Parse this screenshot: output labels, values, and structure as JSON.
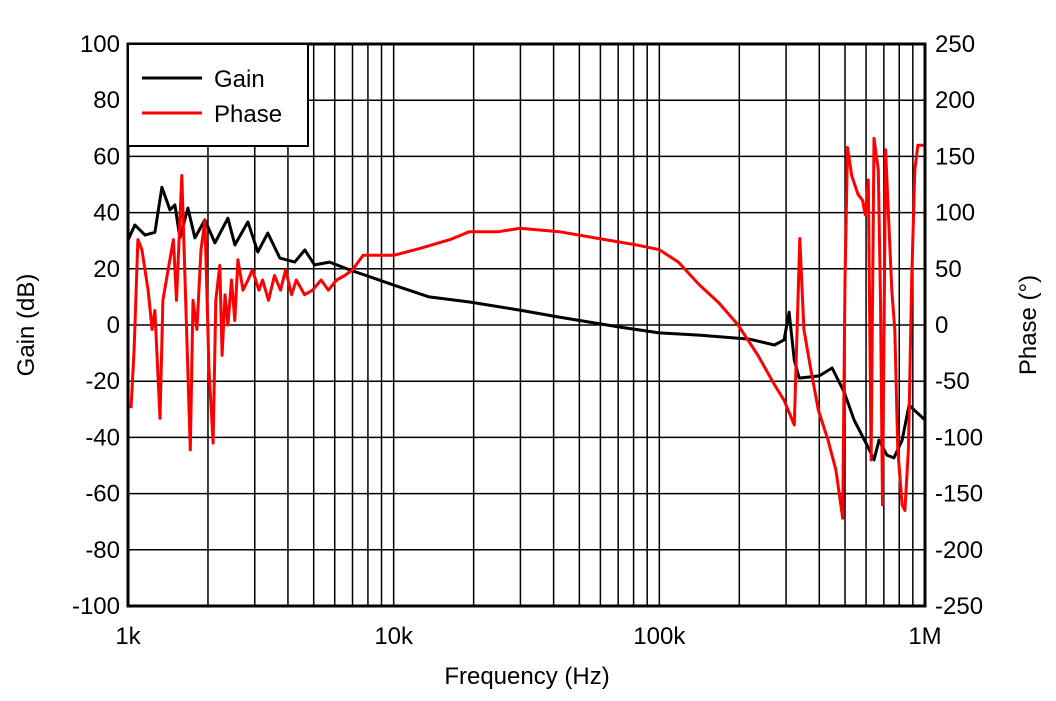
{
  "chart_data": {
    "type": "line",
    "xlabel": "Frequency (Hz)",
    "ylabel": "Gain  (dB)",
    "y2label": "Phase (°)",
    "xscale": "log",
    "xlim": [
      1000,
      1000000
    ],
    "ylim": [
      -100,
      100
    ],
    "y2lim": [
      -250,
      250
    ],
    "grid": true,
    "legend": "top-left",
    "xticks": [
      {
        "v": 1000,
        "label": "1k"
      },
      {
        "v": 10000,
        "label": "10k"
      },
      {
        "v": 100000,
        "label": "100k"
      },
      {
        "v": 1000000,
        "label": "1M"
      }
    ],
    "yticks": [
      -100,
      -80,
      -60,
      -40,
      -20,
      0,
      20,
      40,
      60,
      80,
      100
    ],
    "y2ticks": [
      -250,
      -200,
      -150,
      -100,
      -50,
      0,
      50,
      100,
      150,
      200,
      250
    ],
    "series": [
      {
        "name": "Gain",
        "axis": "left",
        "color": "#000000",
        "x": [
          1000,
          1062,
          1159,
          1263,
          1342,
          1438,
          1502,
          1568,
          1681,
          1786,
          1948,
          2123,
          2377,
          2525,
          2826,
          3080,
          3360,
          3730,
          4240,
          4630,
          5040,
          5740,
          6830,
          7780,
          10000,
          13600,
          19300,
          29800,
          42000,
          70700,
          100000,
          141000,
          218000,
          271000,
          295000,
          308000,
          322000,
          336000,
          400000,
          447000,
          496000,
          541000,
          605000,
          643000,
          671000,
          719000,
          764000,
          820000,
          871000,
          910000,
          1000000
        ],
        "y": [
          30.2,
          35.6,
          32,
          33,
          49,
          41,
          42.7,
          31,
          41.6,
          31,
          37.4,
          29.2,
          38,
          28.5,
          36.7,
          26,
          32.7,
          23.8,
          22.4,
          26.7,
          21.4,
          22.4,
          19.6,
          17.8,
          14.2,
          10,
          8.2,
          5.3,
          2.8,
          -0.7,
          -2.8,
          -3.6,
          -5,
          -7.1,
          -5.3,
          4.6,
          -12.5,
          -18.9,
          -18.1,
          -15.3,
          -23.8,
          -33.8,
          -42.7,
          -48,
          -41,
          -46.3,
          -47.3,
          -41,
          -28.5,
          -30.2,
          -33.8
        ]
      },
      {
        "name": "Phase",
        "axis": "right",
        "color": "#ff0000",
        "x": [
          1026,
          1054,
          1090,
          1128,
          1190,
          1232,
          1263,
          1320,
          1353,
          1416,
          1482,
          1523,
          1594,
          1716,
          1757,
          1817,
          1882,
          1948,
          2017,
          2090,
          2140,
          2216,
          2260,
          2319,
          2377,
          2452,
          2524,
          2592,
          2710,
          2830,
          2940,
          3110,
          3210,
          3380,
          3560,
          3750,
          3920,
          4130,
          4300,
          4620,
          4950,
          5330,
          5680,
          6100,
          6550,
          7000,
          7670,
          8710,
          10000,
          12500,
          16300,
          19300,
          24800,
          29800,
          42000,
          59000,
          83000,
          100000,
          118000,
          141000,
          167000,
          198000,
          235000,
          271000,
          295000,
          322000,
          330000,
          338000,
          350000,
          372000,
          397000,
          431000,
          462000,
          490000,
          500000,
          511000,
          530000,
          560000,
          582000,
          596000,
          612000,
          627000,
          643000,
          667000,
          680000,
          692000,
          711000,
          730000,
          750000,
          770000,
          790000,
          820000,
          840000,
          866000,
          891000,
          915000,
          940000,
          966000,
          990000
        ],
        "y": [
          -74,
          -22,
          76,
          67,
          31,
          -4,
          13,
          -83,
          22,
          49,
          76,
          22,
          133,
          -111,
          22,
          -4,
          67,
          93,
          -40,
          -105,
          22,
          53,
          -27,
          27,
          0,
          40,
          4,
          58,
          31,
          40,
          49,
          31,
          40,
          22,
          44,
          31,
          49,
          27,
          40,
          27,
          31,
          40,
          31,
          40,
          44,
          49,
          62,
          62,
          62,
          68,
          76,
          83,
          83,
          86,
          83,
          77,
          71,
          67,
          56,
          36,
          20,
          0,
          -27,
          -53,
          -67,
          -89,
          -4,
          77,
          -4,
          -40,
          -76,
          -102,
          -129,
          -172,
          40,
          158,
          133,
          116,
          111,
          98,
          129,
          -120,
          166,
          138,
          22,
          -160,
          156,
          93,
          31,
          -4,
          -111,
          -160,
          -165,
          -111,
          40,
          138,
          160,
          160,
          160
        ]
      }
    ]
  }
}
